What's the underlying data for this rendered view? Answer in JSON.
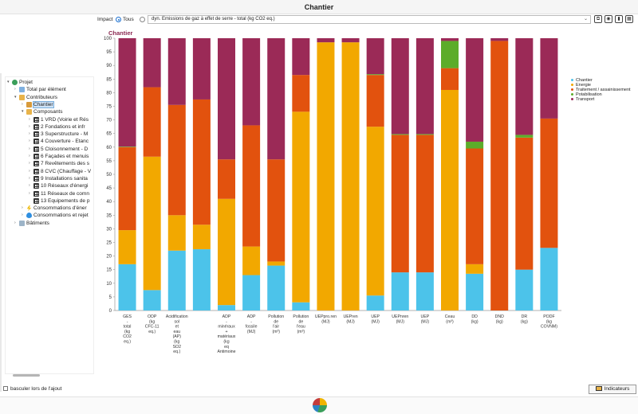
{
  "window": {
    "title": "Chantier"
  },
  "toolbar": {
    "impact_label": "Impact",
    "tous_label": "Tous",
    "indicator_select": "dyn. Emissions de gaz à effet de serre - total (kg CO2 eq.)"
  },
  "tree": [
    {
      "label": "Projet",
      "icon": "app-icon",
      "indent": 0,
      "expander": "▾"
    },
    {
      "label": "Total par élément",
      "icon": "document-icon",
      "indent": 1,
      "expander": "›"
    },
    {
      "label": "Contributeurs",
      "icon": "folder-icon",
      "indent": 1,
      "expander": "▾"
    },
    {
      "label": "Chantier",
      "icon": "chantier-icon",
      "indent": 2,
      "expander": "›",
      "selected": true
    },
    {
      "label": "Composants",
      "icon": "folder-icon",
      "indent": 2,
      "expander": "▾"
    },
    {
      "label": "1 VRD (Voirie et Rés",
      "icon": "grid-icon",
      "indent": 3,
      "expander": "›"
    },
    {
      "label": "2 Fondations et infr",
      "icon": "grid-icon",
      "indent": 3,
      "expander": "›"
    },
    {
      "label": "3 Superstructure - M",
      "icon": "grid-icon",
      "indent": 3,
      "expander": "›"
    },
    {
      "label": "4 Couverture - Etanc",
      "icon": "grid-icon",
      "indent": 3,
      "expander": "›"
    },
    {
      "label": "5 Cloisonnement - D",
      "icon": "grid-icon",
      "indent": 3,
      "expander": "›"
    },
    {
      "label": "6 Façades et menuis",
      "icon": "grid-icon",
      "indent": 3,
      "expander": "›"
    },
    {
      "label": "7 Revêtements des s",
      "icon": "grid-icon",
      "indent": 3,
      "expander": "›"
    },
    {
      "label": "8 CVC (Chauffage - V",
      "icon": "grid-icon",
      "indent": 3,
      "expander": "›"
    },
    {
      "label": "9 Installations sanita",
      "icon": "grid-icon",
      "indent": 3,
      "expander": "›"
    },
    {
      "label": "10 Réseaux d'énergi",
      "icon": "grid-icon",
      "indent": 3,
      "expander": "›"
    },
    {
      "label": "11 Réseaux de comn",
      "icon": "grid-icon",
      "indent": 3,
      "expander": "›"
    },
    {
      "label": "13 Equipements de p",
      "icon": "grid-icon",
      "indent": 3,
      "expander": ""
    },
    {
      "label": "Consommations d'éner",
      "icon": "energy-icon",
      "indent": 2,
      "expander": "›"
    },
    {
      "label": "Consommations et rejet",
      "icon": "water-icon",
      "indent": 2,
      "expander": "›"
    },
    {
      "label": "Bâtiments",
      "icon": "building-icon",
      "indent": 1,
      "expander": "›"
    }
  ],
  "bottom": {
    "checkbox_label": "basculer lors de l'ajout",
    "indicators_button": "Indicateurs"
  },
  "chart_data": {
    "type": "bar",
    "stacked": true,
    "title": "Chantier",
    "ylim": [
      0,
      100
    ],
    "yticks": [
      0,
      5,
      10,
      15,
      20,
      25,
      30,
      35,
      40,
      45,
      50,
      55,
      60,
      65,
      70,
      75,
      80,
      85,
      90,
      95,
      100
    ],
    "grid": false,
    "legend_position": "right",
    "categories": [
      [
        "GES",
        "-",
        "total",
        "(kg",
        "CO2",
        "eq.)"
      ],
      [
        "ODP",
        "(kg",
        "CFC-11",
        "eq.)"
      ],
      [
        "Acidification",
        "sol",
        "et",
        "eau",
        "(AP)",
        "(kg",
        "SO2",
        "eq.)"
      ],
      [
        ""
      ],
      [
        "ADP",
        "-",
        "minéraux",
        "+",
        "matériaux",
        "(kg",
        "eq",
        "Antimoine",
        "(Sb))"
      ],
      [
        "ADP",
        "-",
        "fossile",
        "(MJ)"
      ],
      [
        "Pollution",
        "de",
        "l'air",
        "(m³)"
      ],
      [
        "Pollution",
        "de",
        "l'eau",
        "(m³)"
      ],
      [
        "UEPpro.ren",
        "(MJ)"
      ],
      [
        "UEPren",
        "(MJ)"
      ],
      [
        "UEP",
        "(MJ)"
      ],
      [
        "UEPnren",
        "(MJ)"
      ],
      [
        "UEP",
        "(MJ)"
      ],
      [
        "Ceau",
        "(m³)"
      ],
      [
        "DD",
        "(kg)"
      ],
      [
        "DND",
        "(kg)"
      ],
      [
        "DR",
        "(kg)"
      ],
      [
        "PODF",
        "(kg",
        "COVNM)"
      ]
    ],
    "series": [
      {
        "name": "Chantier",
        "color": "#4cc3ea",
        "values": [
          17,
          7.5,
          22,
          22.5,
          2,
          13,
          16.5,
          3,
          0,
          0,
          5.5,
          14,
          14,
          0,
          13.5,
          0,
          15,
          23
        ]
      },
      {
        "name": "Energie",
        "color": "#f2a800",
        "values": [
          12.5,
          49,
          13,
          9,
          39,
          10.5,
          1.5,
          70,
          98.5,
          98.5,
          62,
          0,
          0,
          81,
          3.5,
          0,
          0,
          0
        ]
      },
      {
        "name": "Traitement / assainissement",
        "color": "#e2520e",
        "values": [
          30.5,
          25.5,
          40.5,
          46,
          14.5,
          44.5,
          37.5,
          13.5,
          0,
          0,
          19,
          50.5,
          50.5,
          8,
          42.5,
          99,
          48.5,
          47.5
        ]
      },
      {
        "name": "Potabilisation",
        "color": "#5cac2a",
        "values": [
          0.2,
          0,
          0,
          0,
          0,
          0,
          0,
          0,
          0,
          0,
          0.3,
          0.3,
          0.3,
          10,
          2.5,
          0,
          1,
          0
        ]
      },
      {
        "name": "Transport",
        "color": "#9b2a57",
        "values": [
          39.8,
          18,
          24.5,
          22.5,
          44.5,
          32,
          44.5,
          13.5,
          1.5,
          1.5,
          13.2,
          35.2,
          35.2,
          1,
          38,
          1,
          35.5,
          29.5
        ]
      }
    ]
  }
}
